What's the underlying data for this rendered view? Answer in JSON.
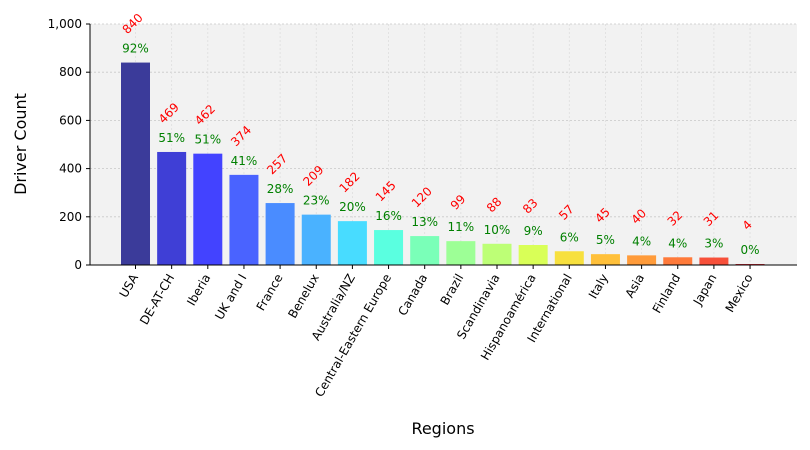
{
  "chart_data": {
    "type": "bar",
    "xlabel": "Regions",
    "ylabel": "Driver Count",
    "ylim": [
      0,
      1000
    ],
    "yticks": [
      0,
      200,
      400,
      600,
      800,
      1000
    ],
    "ytick_labels": [
      "0",
      "200",
      "400",
      "600",
      "800",
      "1,000"
    ],
    "grid": true,
    "categories": [
      "USA",
      "DE-AT-CH",
      "Iberia",
      "UK and I",
      "France",
      "Benelux",
      "Australia/NZ",
      "Central-Eastern Europe",
      "Canada",
      "Brazil",
      "Scandinavia",
      "Hispanoamérica",
      "International",
      "Italy",
      "Asia",
      "Finland",
      "Japan",
      "Mexico"
    ],
    "values": [
      840,
      469,
      462,
      374,
      257,
      209,
      182,
      145,
      120,
      99,
      88,
      83,
      57,
      45,
      40,
      32,
      31,
      4
    ],
    "percent_labels": [
      "92%",
      "51%",
      "51%",
      "41%",
      "28%",
      "23%",
      "20%",
      "16%",
      "13%",
      "11%",
      "10%",
      "9%",
      "6%",
      "5%",
      "4%",
      "4%",
      "3%",
      "0%"
    ],
    "colors": [
      "#3b3b9a",
      "#3f3fd6",
      "#4343ff",
      "#4a63ff",
      "#4a8cff",
      "#4ab2ff",
      "#48dcff",
      "#5affe0",
      "#7affb8",
      "#9dff96",
      "#bdff76",
      "#d9ff57",
      "#f7e03e",
      "#ffc03a",
      "#ff9b3a",
      "#ff7a3a",
      "#f7503a",
      "#d0202a"
    ],
    "plot_background": "#f2f2f2",
    "count_label_color": "#ff0000",
    "percent_label_color": "#008000"
  }
}
